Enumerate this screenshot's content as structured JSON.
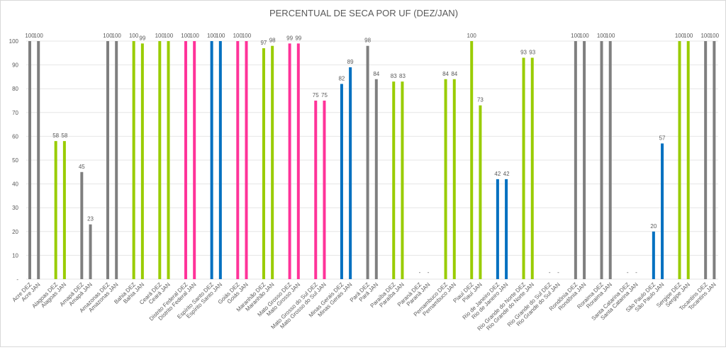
{
  "chart_data": {
    "type": "bar",
    "title": "PERCENTUAL DE SECA POR UF (DEZ/JAN)",
    "xlabel": "",
    "ylabel": "",
    "ylim": [
      0,
      100
    ],
    "yticks": [
      0,
      10,
      20,
      30,
      40,
      50,
      60,
      70,
      80,
      90,
      100
    ],
    "ytick_labels": [
      "-",
      "10",
      "20",
      "30",
      "40",
      "50",
      "60",
      "70",
      "80",
      "90",
      "100"
    ],
    "grid": true,
    "legend": "none",
    "zero_label": "-",
    "colors": {
      "gray": "#7f7f7f",
      "green": "#99cc00",
      "pink": "#ff3399",
      "blue": "#0070c0",
      "grid": "#e6e6e6",
      "text": "#595959"
    },
    "groups": [
      {
        "state": "Acre",
        "color": "gray",
        "bars": [
          {
            "label": "Acre DEZ",
            "value": 100
          },
          {
            "label": "Acre JAN",
            "value": 100
          }
        ]
      },
      {
        "state": "Alagoas",
        "color": "green",
        "bars": [
          {
            "label": "Alagoas DEZ",
            "value": 58
          },
          {
            "label": "Alagoas JAN",
            "value": 58
          }
        ]
      },
      {
        "state": "Amapá",
        "color": "gray",
        "bars": [
          {
            "label": "Amapá DEZ",
            "value": 45
          },
          {
            "label": "Amapá JAN",
            "value": 23
          }
        ]
      },
      {
        "state": "Amazonas",
        "color": "gray",
        "bars": [
          {
            "label": "Amazonas DEZ",
            "value": 100
          },
          {
            "label": "Amazonas JAN",
            "value": 100
          }
        ]
      },
      {
        "state": "Bahia",
        "color": "green",
        "bars": [
          {
            "label": "Bahia DEZ",
            "value": 100
          },
          {
            "label": "Bahia JAN",
            "value": 99
          }
        ]
      },
      {
        "state": "Ceará",
        "color": "green",
        "bars": [
          {
            "label": "Ceará DEZ",
            "value": 100
          },
          {
            "label": "Ceará JAN",
            "value": 100
          }
        ]
      },
      {
        "state": "Distrito Federal",
        "color": "pink",
        "bars": [
          {
            "label": "Distrito Federal DEZ",
            "value": 100
          },
          {
            "label": "Distrito Federal JAN",
            "value": 100
          }
        ]
      },
      {
        "state": "Espírito Santo",
        "color": "blue",
        "bars": [
          {
            "label": "Espírito Santo DEZ",
            "value": 100
          },
          {
            "label": "Espírito Santo JAN",
            "value": 100
          }
        ]
      },
      {
        "state": "Goiás",
        "color": "pink",
        "bars": [
          {
            "label": "Goiás DEZ",
            "value": 100
          },
          {
            "label": "Goiás JAN",
            "value": 100
          }
        ]
      },
      {
        "state": "Maranhão",
        "color": "green",
        "bars": [
          {
            "label": "Maranhão DEZ",
            "value": 97
          },
          {
            "label": "Maranhão JAN",
            "value": 98
          }
        ]
      },
      {
        "state": "Mato Grosso",
        "color": "pink",
        "bars": [
          {
            "label": "Mato Grosso DEZ",
            "value": 99
          },
          {
            "label": "Mato Grosso JAN",
            "value": 99
          }
        ]
      },
      {
        "state": "Mato Grosso do Sul",
        "color": "pink",
        "bars": [
          {
            "label": "Mato Grosso do Sul DEZ",
            "value": 75
          },
          {
            "label": "Mato Grosso do Sul JAN",
            "value": 75
          }
        ]
      },
      {
        "state": "Minas Gerais",
        "color": "blue",
        "bars": [
          {
            "label": "Minas Gerais DEZ",
            "value": 82
          },
          {
            "label": "Minas Gerais JAN",
            "value": 89
          }
        ]
      },
      {
        "state": "Pará",
        "color": "gray",
        "bars": [
          {
            "label": "Pará DEZ",
            "value": 98
          },
          {
            "label": "Pará JAN",
            "value": 84
          }
        ]
      },
      {
        "state": "Paraíba",
        "color": "green",
        "bars": [
          {
            "label": "Paraíba DEZ",
            "value": 83
          },
          {
            "label": "Paraíba JAN",
            "value": 83
          }
        ]
      },
      {
        "state": "Paraná",
        "color": "pink",
        "bars": [
          {
            "label": "Paraná DEZ",
            "value": 0
          },
          {
            "label": "Paraná JAN",
            "value": 0
          }
        ]
      },
      {
        "state": "Pernambuco",
        "color": "green",
        "bars": [
          {
            "label": "Pernambuco DEZ",
            "value": 84
          },
          {
            "label": "Pernambuco JAN",
            "value": 84
          }
        ]
      },
      {
        "state": "Piauí",
        "color": "green",
        "bars": [
          {
            "label": "Piauí DEZ",
            "value": 100
          },
          {
            "label": "Piauí JAN",
            "value": 73
          }
        ]
      },
      {
        "state": "Rio de Janeiro",
        "color": "blue",
        "bars": [
          {
            "label": "Rio de Janeiro DEZ",
            "value": 42
          },
          {
            "label": "Rio de Janeiro JAN",
            "value": 42
          }
        ]
      },
      {
        "state": "Rio Grande do Norte",
        "color": "green",
        "bars": [
          {
            "label": "Rio Grande do Norte DEZ",
            "value": 93
          },
          {
            "label": "Rio Grande do Norte JAN",
            "value": 93
          }
        ]
      },
      {
        "state": "Rio Grande do Sul",
        "color": "pink",
        "bars": [
          {
            "label": "Rio Grande do Sul DEZ",
            "value": 0
          },
          {
            "label": "Rio Grande do Sul JAN",
            "value": 0
          }
        ]
      },
      {
        "state": "Rondônia",
        "color": "gray",
        "bars": [
          {
            "label": "Rondônia DEZ",
            "value": 100
          },
          {
            "label": "Rondônia JAN",
            "value": 100
          }
        ]
      },
      {
        "state": "Roraima",
        "color": "gray",
        "bars": [
          {
            "label": "Roraima DEZ",
            "value": 100
          },
          {
            "label": "Roraima JAN",
            "value": 100
          }
        ]
      },
      {
        "state": "Santa Catarina",
        "color": "pink",
        "bars": [
          {
            "label": "Santa Catarina DEZ",
            "value": 0
          },
          {
            "label": "Santa Catarina JAN",
            "value": 0
          }
        ]
      },
      {
        "state": "São Paulo",
        "color": "blue",
        "bars": [
          {
            "label": "São Paulo DEZ",
            "value": 20
          },
          {
            "label": "São Paulo JAN",
            "value": 57
          }
        ]
      },
      {
        "state": "Sergipe",
        "color": "green",
        "bars": [
          {
            "label": "Sergipe DEZ",
            "value": 100
          },
          {
            "label": "Sergipe JAN",
            "value": 100
          }
        ]
      },
      {
        "state": "Tocantins",
        "color": "gray",
        "bars": [
          {
            "label": "Tocantins DEZ",
            "value": 100
          },
          {
            "label": "Tocantins JAN",
            "value": 100
          }
        ]
      }
    ]
  }
}
